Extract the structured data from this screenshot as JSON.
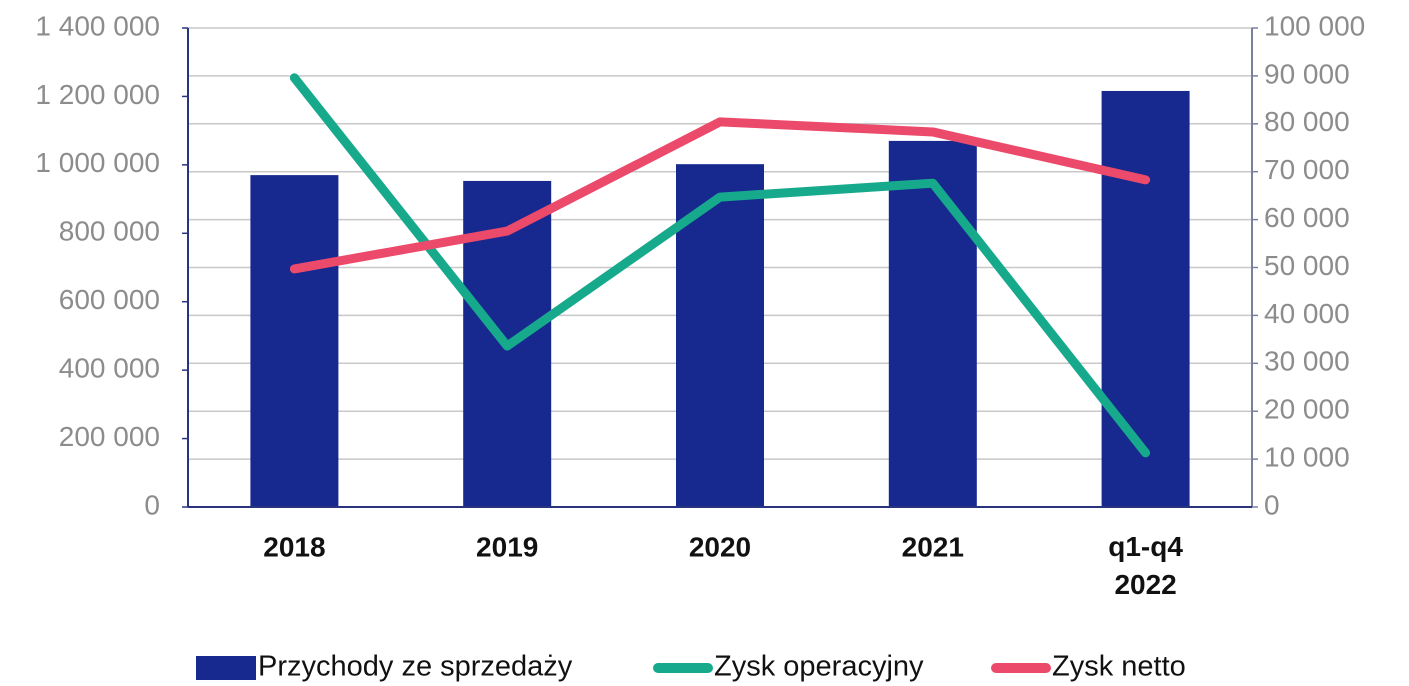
{
  "chart_data": {
    "type": "bar_line",
    "categories": [
      "2018",
      "2019",
      "2020",
      "2021",
      "q1-q4 2022"
    ],
    "series": [
      {
        "name": "Przychody ze sprzedaży",
        "type": "bar",
        "color": "#17288f",
        "values": [
          970000,
          953000,
          1002000,
          1070000,
          1216000
        ]
      },
      {
        "name": "Zysk operacyjny",
        "type": "line",
        "axis": "y2",
        "color": "#17a98c",
        "values": [
          89600,
          33600,
          64700,
          67600,
          11300
        ]
      },
      {
        "name": "Zysk netto",
        "type": "line",
        "axis": "y2",
        "color": "#ec4a6a",
        "values": [
          49700,
          57600,
          80400,
          78300,
          68300
        ]
      }
    ],
    "ylim": [
      0,
      1400000
    ],
    "yticks": [
      0,
      {
        "value": 200000,
        "label": "200 000"
      },
      {
        "value": 400000,
        "label": "400 000"
      },
      {
        "value": 600000,
        "label": "600 000"
      },
      {
        "value": 800000,
        "label": "800 000"
      },
      {
        "value": 1000000,
        "label": "1 000 000"
      },
      {
        "value": 1200000,
        "label": "1 200 000"
      },
      {
        "value": 1400000,
        "label": "1 400 000"
      }
    ],
    "y2lim": [
      0,
      100000
    ],
    "y2ticks": [
      0,
      {
        "value": 10000,
        "label": "10 000"
      },
      {
        "value": 20000,
        "label": "20 000"
      },
      {
        "value": 30000,
        "label": "30 000"
      },
      {
        "value": 40000,
        "label": "40 000"
      },
      {
        "value": 50000,
        "label": "50 000"
      },
      {
        "value": 60000,
        "label": "60 000"
      },
      {
        "value": 70000,
        "label": "70 000"
      },
      {
        "value": 80000,
        "label": "80 000"
      },
      {
        "value": 90000,
        "label": "90 000"
      },
      {
        "value": 100000,
        "label": "100 000"
      }
    ],
    "grid": true,
    "legend": "bottom"
  }
}
